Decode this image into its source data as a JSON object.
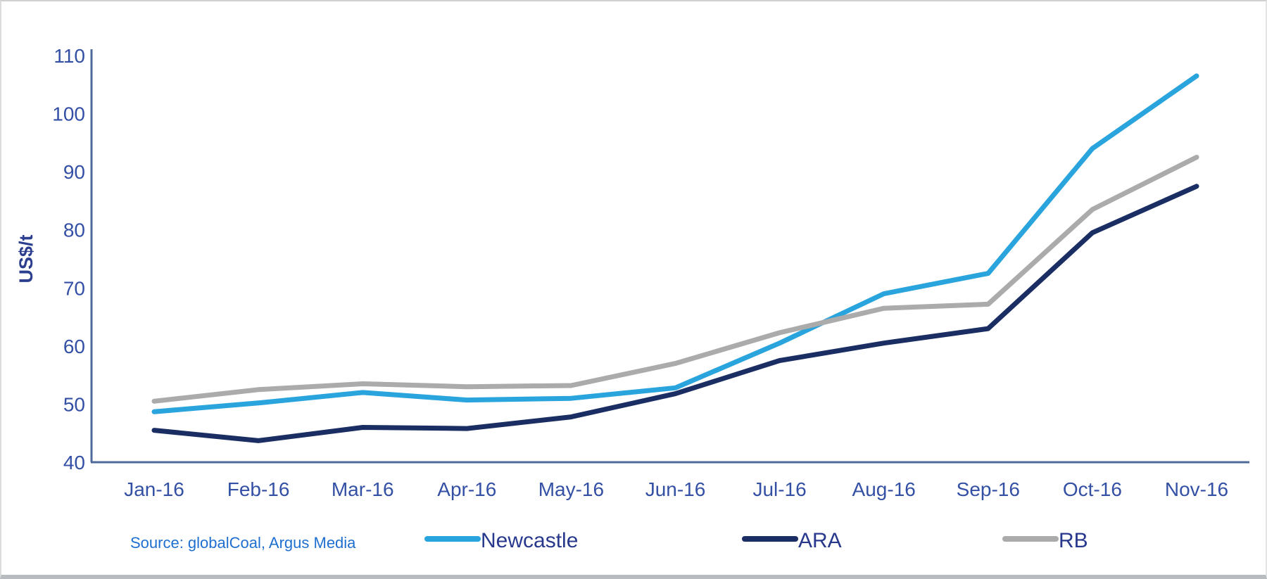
{
  "chart_data": {
    "type": "line",
    "title": "",
    "xlabel": "",
    "ylabel": "US$/t",
    "ylim": [
      40,
      110
    ],
    "yticks": [
      40,
      50,
      60,
      70,
      80,
      90,
      100,
      110
    ],
    "grid": false,
    "legend_position": "bottom",
    "categories": [
      "Jan-16",
      "Feb-16",
      "Mar-16",
      "Apr-16",
      "May-16",
      "Jun-16",
      "Jul-16",
      "Aug-16",
      "Sep-16",
      "Oct-16",
      "Nov-16"
    ],
    "series": [
      {
        "name": "Newcastle",
        "color": "#2aa4dd",
        "values": [
          48.7,
          50.2,
          52.0,
          50.7,
          51.0,
          52.8,
          60.5,
          69.0,
          72.5,
          94.0,
          106.5
        ]
      },
      {
        "name": "ARA",
        "color": "#1a2e63",
        "values": [
          45.5,
          43.7,
          46.0,
          45.8,
          47.8,
          51.8,
          57.5,
          60.5,
          63.0,
          79.5,
          87.5
        ]
      },
      {
        "name": "RB",
        "color": "#ababab",
        "values": [
          50.5,
          52.5,
          53.5,
          53.0,
          53.2,
          57.0,
          62.3,
          66.5,
          67.2,
          83.5,
          92.5
        ]
      }
    ]
  },
  "source_note": "Source: globalCoal, Argus Media",
  "colors": {
    "tick_label": "#3450a5",
    "axis_line": "#4e6a9b",
    "ylabel_text": "#2c3f8f",
    "legend_text": "#28388c",
    "source_text": "#1f6fd0"
  }
}
